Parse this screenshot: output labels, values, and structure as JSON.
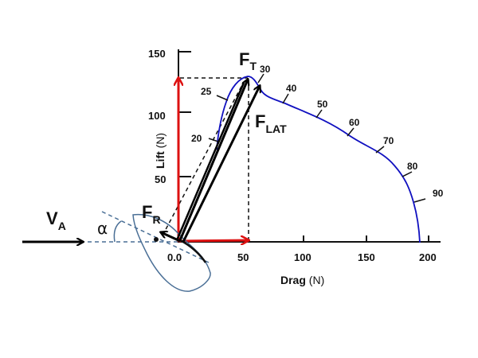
{
  "axes": {
    "x_label": "Drag",
    "x_unit": "(N)",
    "y_label": "Lift",
    "y_unit": "(N)",
    "x_ticks": [
      "0.0",
      "50",
      "100",
      "150",
      "200"
    ],
    "y_ticks": [
      "50",
      "100",
      "150"
    ]
  },
  "curve_labels": [
    "20",
    "25",
    "30",
    "40",
    "50",
    "60",
    "70",
    "80",
    "90"
  ],
  "labels": {
    "apparent_wind": {
      "main": "V",
      "sub": "A"
    },
    "angle": "α",
    "resistance": {
      "main": "F",
      "sub": "R"
    },
    "total_force": {
      "main": "F",
      "sub": "T"
    },
    "lateral_force": {
      "main": "F",
      "sub": "LAT"
    }
  },
  "colors": {
    "curve": "#1010c0",
    "components": "#dd1111",
    "boat": "#4a6f96",
    "force": "#000000"
  }
}
